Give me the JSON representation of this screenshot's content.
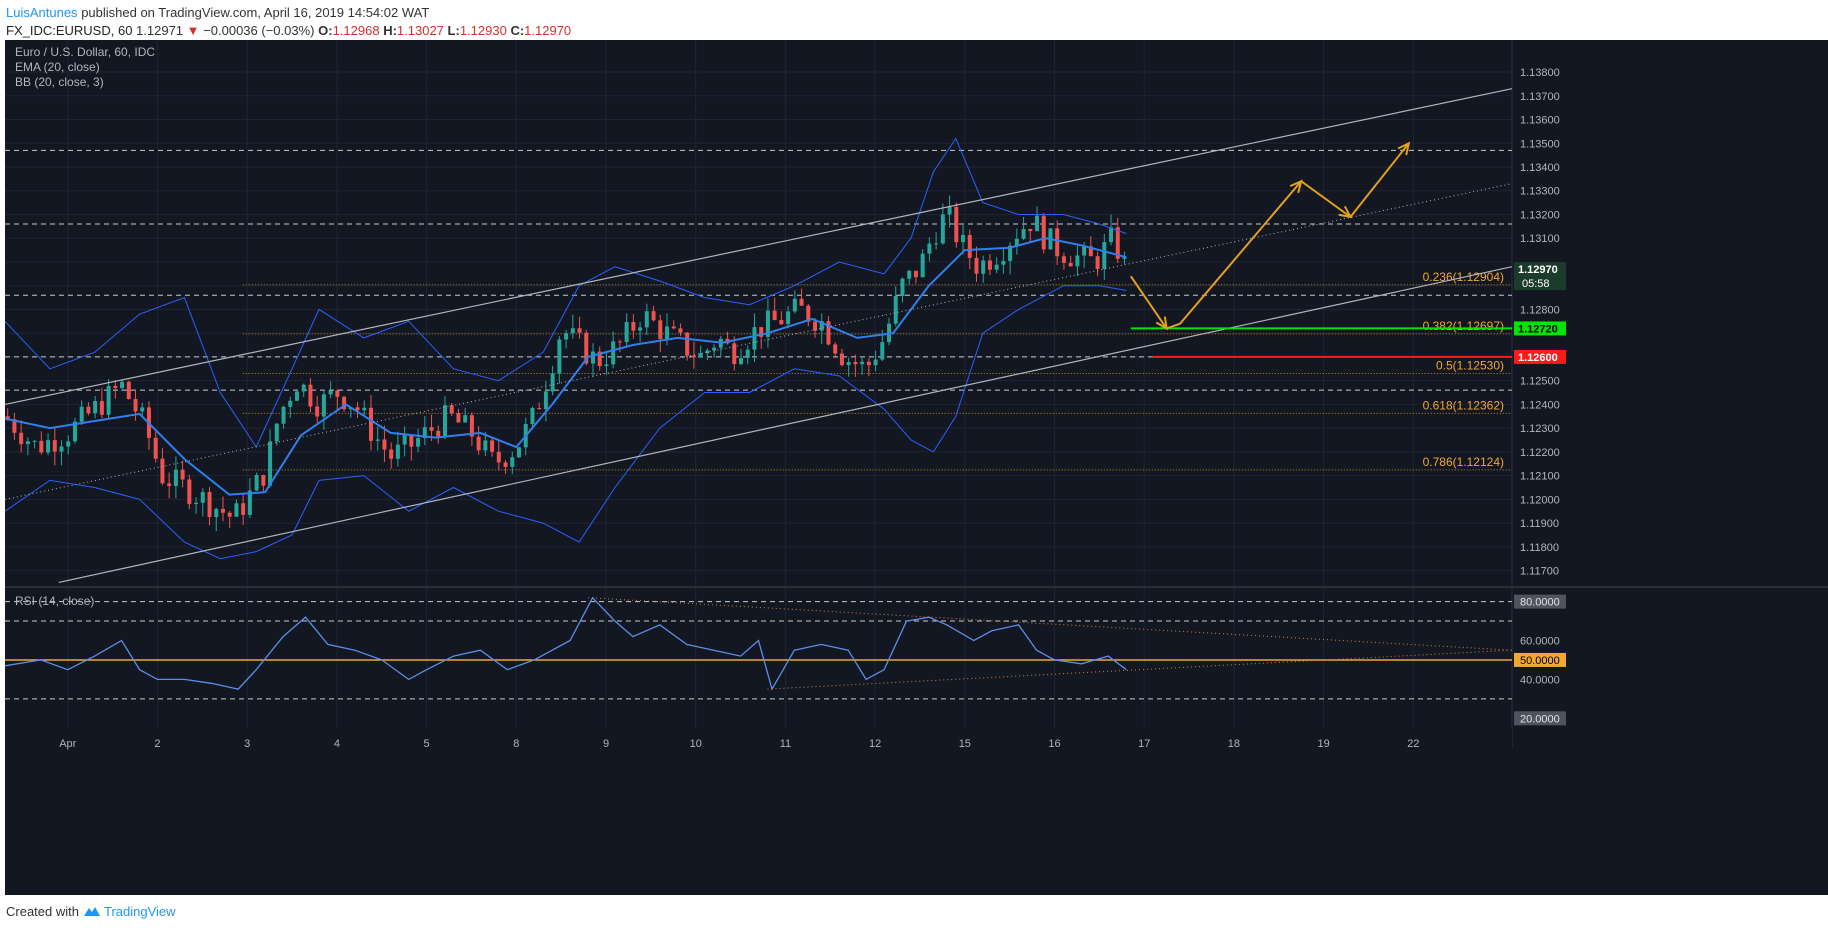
{
  "header": {
    "author": "LuisAntunes",
    "published": "published on TradingView.com, April 16, 2019 14:54:02 WAT",
    "symbol": "FX_IDC:EURUSD, 60",
    "price": "1.12971",
    "change_arrow": "▼",
    "change": "−0.00036 (−0.03%)",
    "o_label": "O:",
    "o_value": "1.12968",
    "h_label": "H:",
    "h_value": "1.13027",
    "l_label": "L:",
    "l_value": "1.12930",
    "c_label": "C:",
    "c_value": "1.12970"
  },
  "legend": {
    "title": "Euro / U.S. Dollar, 60, IDC",
    "ema": "EMA (20, close)",
    "bb": "BB (20, close, 3)",
    "rsi": "RSI (14, close)"
  },
  "footer": {
    "created": "Created with",
    "brand": "TradingView",
    "logo_icon": "tradingview-logo-icon"
  },
  "colors": {
    "background": "#131722",
    "grid": "#1f2433",
    "axis_text": "#b2b5be",
    "up": "#26a69a",
    "down": "#ef5350",
    "bb": "#2962ff",
    "ema": "#2f80ed",
    "channel": "#b2b5be",
    "fib": "#f0a830",
    "arrow": "#e0a020",
    "rsi": "#5b8ee6",
    "green_line": "#00e600",
    "red_line": "#ff1a1a"
  },
  "chart_data": [
    {
      "type": "candlestick",
      "title": "Euro / U.S. Dollar, 60, IDC",
      "x_tick_labels": [
        "Apr",
        "2",
        "3",
        "4",
        "5",
        "8",
        "9",
        "10",
        "11",
        "12",
        "15",
        "16",
        "17",
        "18",
        "19",
        "22"
      ],
      "x_tick_positions": [
        0.7,
        1.7,
        2.7,
        3.7,
        4.7,
        5.7,
        6.7,
        7.7,
        8.7,
        9.7,
        10.7,
        11.7,
        12.7,
        13.7,
        14.7,
        15.7
      ],
      "xlim": [
        0,
        16.8
      ],
      "ylim": [
        1.11635,
        1.13935
      ],
      "y_tick_values": [
        1.117,
        1.118,
        1.119,
        1.12,
        1.121,
        1.122,
        1.123,
        1.124,
        1.125,
        1.126,
        1.127,
        1.128,
        1.129,
        1.13,
        1.131,
        1.132,
        1.133,
        1.134,
        1.135,
        1.136,
        1.137,
        1.138
      ],
      "y_tick_labels": [
        "1.11700",
        "1.11800",
        "1.11900",
        "1.12000",
        "1.12100",
        "1.12200",
        "1.12300",
        "1.12400",
        "1.12500",
        "1.12600",
        "1.12700",
        "1.12800",
        "1.12900",
        "1.13000",
        "1.13100",
        "1.13200",
        "1.13300",
        "1.13400",
        "1.13500",
        "1.13600",
        "1.13700",
        "1.13800"
      ],
      "price_path": [
        [
          0.0,
          1.1235
        ],
        [
          0.35,
          1.1222
        ],
        [
          0.7,
          1.1228
        ],
        [
          1.0,
          1.1238
        ],
        [
          1.3,
          1.1248
        ],
        [
          1.55,
          1.1232
        ],
        [
          1.75,
          1.121
        ],
        [
          2.0,
          1.1205
        ],
        [
          2.3,
          1.1198
        ],
        [
          2.55,
          1.1192
        ],
        [
          2.7,
          1.12
        ],
        [
          2.9,
          1.1212
        ],
        [
          3.05,
          1.1235
        ],
        [
          3.25,
          1.125
        ],
        [
          3.5,
          1.124
        ],
        [
          3.7,
          1.1245
        ],
        [
          3.9,
          1.124
        ],
        [
          4.1,
          1.1228
        ],
        [
          4.3,
          1.1218
        ],
        [
          4.5,
          1.1222
        ],
        [
          4.7,
          1.1228
        ],
        [
          4.95,
          1.1235
        ],
        [
          5.2,
          1.1228
        ],
        [
          5.45,
          1.1215
        ],
        [
          5.7,
          1.1222
        ],
        [
          5.9,
          1.1235
        ],
        [
          6.1,
          1.1258
        ],
        [
          6.2,
          1.1272
        ],
        [
          6.4,
          1.1265
        ],
        [
          6.6,
          1.1258
        ],
        [
          6.85,
          1.1265
        ],
        [
          7.1,
          1.1278
        ],
        [
          7.3,
          1.1272
        ],
        [
          7.55,
          1.1265
        ],
        [
          7.75,
          1.126
        ],
        [
          7.95,
          1.1268
        ],
        [
          8.1,
          1.1262
        ],
        [
          8.4,
          1.1272
        ],
        [
          8.6,
          1.1275
        ],
        [
          8.85,
          1.128
        ],
        [
          9.1,
          1.1275
        ],
        [
          9.35,
          1.126
        ],
        [
          9.6,
          1.1255
        ],
        [
          9.8,
          1.1268
        ],
        [
          10.0,
          1.129
        ],
        [
          10.2,
          1.1298
        ],
        [
          10.35,
          1.1312
        ],
        [
          10.5,
          1.132
        ],
        [
          10.65,
          1.1308
        ],
        [
          10.85,
          1.1298
        ],
        [
          11.1,
          1.1305
        ],
        [
          11.25,
          1.1312
        ],
        [
          11.45,
          1.1318
        ],
        [
          11.6,
          1.131
        ],
        [
          11.75,
          1.1305
        ],
        [
          11.95,
          1.1302
        ],
        [
          12.15,
          1.13
        ],
        [
          12.35,
          1.131
        ],
        [
          12.5,
          1.1297
        ]
      ],
      "ema_path": [
        [
          0.0,
          1.1234
        ],
        [
          0.5,
          1.123
        ],
        [
          1.0,
          1.1233
        ],
        [
          1.5,
          1.1236
        ],
        [
          2.0,
          1.1217
        ],
        [
          2.5,
          1.1202
        ],
        [
          2.9,
          1.1203
        ],
        [
          3.3,
          1.1227
        ],
        [
          3.8,
          1.124
        ],
        [
          4.3,
          1.1228
        ],
        [
          4.8,
          1.1226
        ],
        [
          5.3,
          1.1228
        ],
        [
          5.7,
          1.1222
        ],
        [
          6.1,
          1.124
        ],
        [
          6.5,
          1.126
        ],
        [
          7.0,
          1.1265
        ],
        [
          7.5,
          1.1268
        ],
        [
          8.0,
          1.1266
        ],
        [
          8.5,
          1.127
        ],
        [
          9.0,
          1.1276
        ],
        [
          9.5,
          1.1268
        ],
        [
          9.9,
          1.127
        ],
        [
          10.3,
          1.129
        ],
        [
          10.7,
          1.1305
        ],
        [
          11.2,
          1.1306
        ],
        [
          11.6,
          1.131
        ],
        [
          12.0,
          1.1307
        ],
        [
          12.5,
          1.1302
        ]
      ],
      "bb_upper_path": [
        [
          0.0,
          1.1275
        ],
        [
          0.5,
          1.1255
        ],
        [
          1.0,
          1.1262
        ],
        [
          1.5,
          1.1278
        ],
        [
          2.0,
          1.1285
        ],
        [
          2.4,
          1.1245
        ],
        [
          2.8,
          1.1222
        ],
        [
          3.2,
          1.1255
        ],
        [
          3.5,
          1.128
        ],
        [
          4.0,
          1.1268
        ],
        [
          4.5,
          1.1275
        ],
        [
          5.0,
          1.1255
        ],
        [
          5.5,
          1.125
        ],
        [
          6.0,
          1.1262
        ],
        [
          6.4,
          1.129
        ],
        [
          6.8,
          1.1298
        ],
        [
          7.3,
          1.1292
        ],
        [
          7.8,
          1.1285
        ],
        [
          8.3,
          1.1282
        ],
        [
          8.8,
          1.129
        ],
        [
          9.3,
          1.13
        ],
        [
          9.8,
          1.1295
        ],
        [
          10.1,
          1.131
        ],
        [
          10.35,
          1.1338
        ],
        [
          10.6,
          1.1352
        ],
        [
          10.9,
          1.1325
        ],
        [
          11.3,
          1.132
        ],
        [
          11.8,
          1.132
        ],
        [
          12.2,
          1.1316
        ],
        [
          12.5,
          1.1312
        ]
      ],
      "bb_lower_path": [
        [
          0.0,
          1.1195
        ],
        [
          0.5,
          1.1208
        ],
        [
          1.0,
          1.1205
        ],
        [
          1.5,
          1.12
        ],
        [
          2.0,
          1.1182
        ],
        [
          2.4,
          1.1175
        ],
        [
          2.8,
          1.1178
        ],
        [
          3.2,
          1.1185
        ],
        [
          3.5,
          1.1208
        ],
        [
          4.0,
          1.121
        ],
        [
          4.5,
          1.1195
        ],
        [
          5.0,
          1.1205
        ],
        [
          5.5,
          1.1195
        ],
        [
          6.0,
          1.119
        ],
        [
          6.4,
          1.1182
        ],
        [
          6.8,
          1.1205
        ],
        [
          7.3,
          1.123
        ],
        [
          7.8,
          1.1245
        ],
        [
          8.3,
          1.1245
        ],
        [
          8.8,
          1.1255
        ],
        [
          9.3,
          1.1252
        ],
        [
          9.8,
          1.1238
        ],
        [
          10.1,
          1.1225
        ],
        [
          10.35,
          1.122
        ],
        [
          10.6,
          1.1235
        ],
        [
          10.9,
          1.127
        ],
        [
          11.3,
          1.128
        ],
        [
          11.8,
          1.129
        ],
        [
          12.2,
          1.129
        ],
        [
          12.5,
          1.1288
        ]
      ],
      "channel_upper": [
        [
          0.0,
          1.124
        ],
        [
          16.8,
          1.1373
        ]
      ],
      "channel_lower": [
        [
          0.6,
          1.1165
        ],
        [
          16.8,
          1.1298
        ]
      ],
      "channel_mid": [
        [
          0.0,
          1.12
        ],
        [
          16.8,
          1.1333
        ]
      ],
      "horizontal_levels": [
        1.1347,
        1.1316,
        1.1286,
        1.1246,
        1.126
      ],
      "fib_start_x": 2.65,
      "fib_levels": [
        {
          "label": "0.236(1.12904)",
          "value": 1.12904
        },
        {
          "label": "0.382(1.12697)",
          "value": 1.12697
        },
        {
          "label": "0.5(1.12530)",
          "value": 1.1253
        },
        {
          "label": "0.618(1.12362)",
          "value": 1.12362
        },
        {
          "label": "0.786(1.12124)",
          "value": 1.12124
        }
      ],
      "green_level": {
        "value": 1.1272,
        "label": "1.12720",
        "x_start": 12.55
      },
      "red_level": {
        "value": 1.126,
        "label": "1.12600",
        "x_start": 12.8
      },
      "current_price": {
        "label": "1.12970",
        "value": 1.1297,
        "countdown": "05:58"
      },
      "projection_path": [
        [
          12.55,
          1.1294
        ],
        [
          12.95,
          1.1272
        ],
        [
          13.1,
          1.1274
        ],
        [
          14.45,
          1.1334
        ],
        [
          14.45,
          1.1334
        ],
        [
          15.0,
          1.1319
        ],
        [
          15.65,
          1.135
        ]
      ]
    },
    {
      "type": "line",
      "title": "RSI (14, close)",
      "ylim": [
        15,
        87
      ],
      "y_tick_values": [
        80,
        60,
        50,
        40,
        20
      ],
      "y_tick_labels": [
        "80.0000",
        "60.0000",
        "50.0000",
        "40.0000",
        "20.0000"
      ],
      "dashed_levels": [
        80,
        70,
        30
      ],
      "midline": 50,
      "series": [
        {
          "name": "RSI",
          "points": [
            [
              0.0,
              47
            ],
            [
              0.4,
              50
            ],
            [
              0.7,
              45
            ],
            [
              1.0,
              52
            ],
            [
              1.3,
              60
            ],
            [
              1.5,
              45
            ],
            [
              1.7,
              40
            ],
            [
              2.0,
              40
            ],
            [
              2.3,
              38
            ],
            [
              2.6,
              35
            ],
            [
              2.8,
              45
            ],
            [
              3.1,
              62
            ],
            [
              3.35,
              72
            ],
            [
              3.6,
              58
            ],
            [
              3.9,
              55
            ],
            [
              4.2,
              50
            ],
            [
              4.5,
              40
            ],
            [
              4.7,
              45
            ],
            [
              5.0,
              52
            ],
            [
              5.3,
              55
            ],
            [
              5.6,
              45
            ],
            [
              5.9,
              50
            ],
            [
              6.3,
              60
            ],
            [
              6.55,
              82
            ],
            [
              6.8,
              70
            ],
            [
              7.0,
              62
            ],
            [
              7.3,
              68
            ],
            [
              7.6,
              58
            ],
            [
              7.9,
              55
            ],
            [
              8.2,
              52
            ],
            [
              8.4,
              60
            ],
            [
              8.55,
              35
            ],
            [
              8.8,
              55
            ],
            [
              9.1,
              58
            ],
            [
              9.4,
              55
            ],
            [
              9.6,
              40
            ],
            [
              9.8,
              45
            ],
            [
              10.05,
              70
            ],
            [
              10.3,
              72
            ],
            [
              10.5,
              68
            ],
            [
              10.8,
              60
            ],
            [
              11.0,
              65
            ],
            [
              11.3,
              68
            ],
            [
              11.5,
              55
            ],
            [
              11.7,
              50
            ],
            [
              12.0,
              48
            ],
            [
              12.3,
              52
            ],
            [
              12.5,
              45
            ]
          ]
        }
      ],
      "triangle_upper": [
        [
          6.5,
          82
        ],
        [
          16.8,
          55
        ]
      ],
      "triangle_lower": [
        [
          8.5,
          35
        ],
        [
          16.8,
          55
        ]
      ]
    }
  ]
}
